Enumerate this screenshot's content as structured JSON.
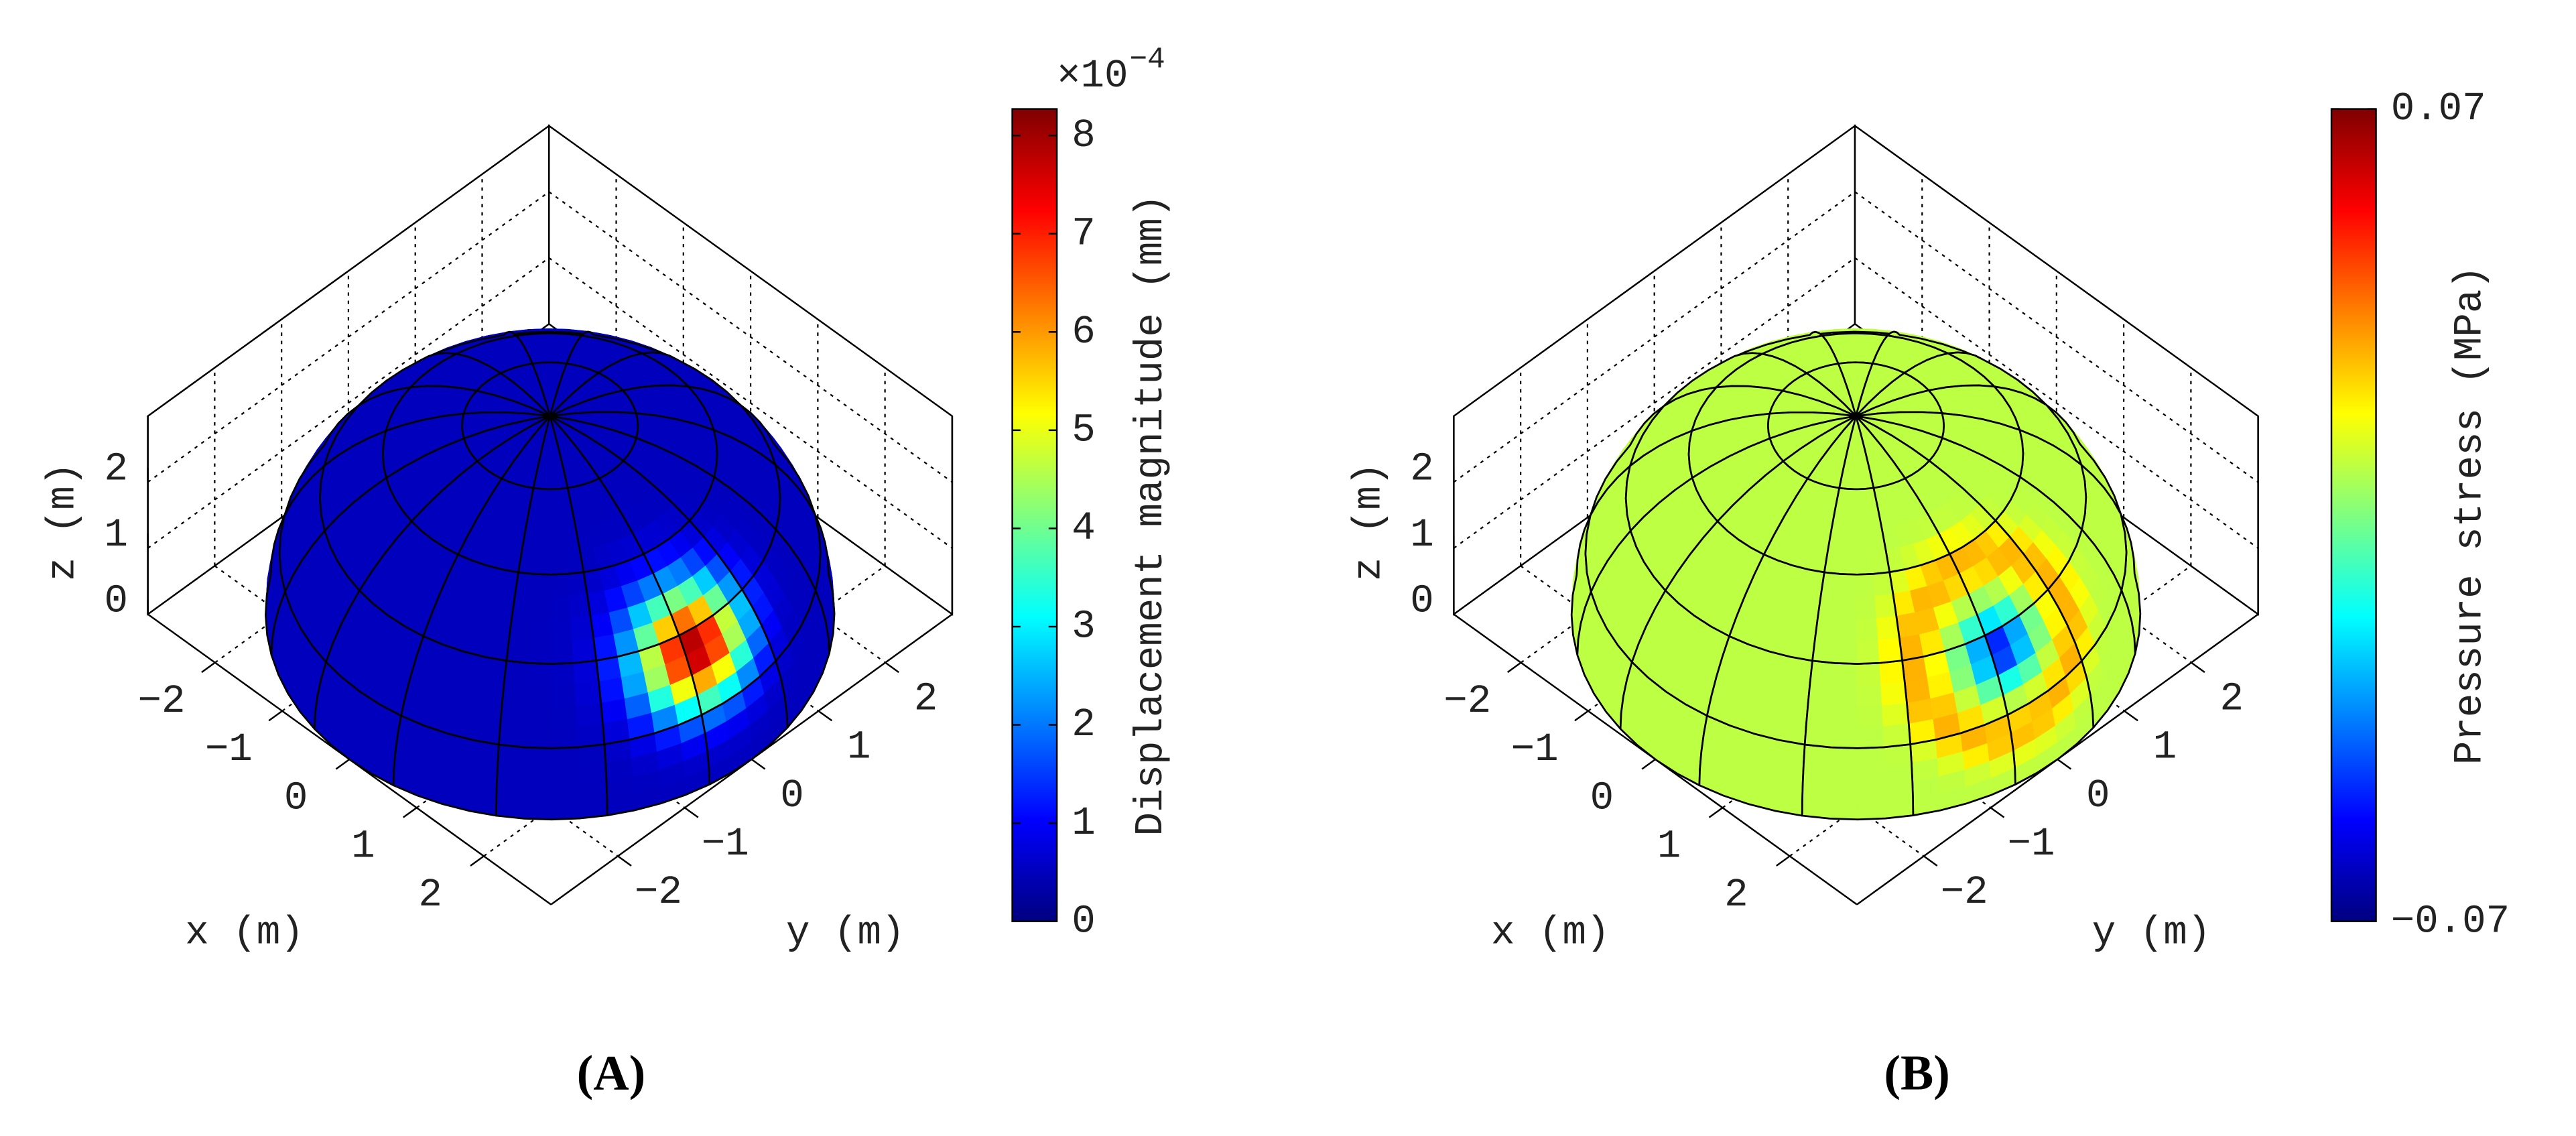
{
  "chart_data": [
    {
      "type": "surface3d",
      "panel_label": "(A)",
      "x_label": "x (m)",
      "y_label": "y (m)",
      "z_label": "z (m)",
      "xlim": [
        -3,
        3
      ],
      "ylim": [
        -3,
        3
      ],
      "zlim": [
        0,
        3
      ],
      "xticks": [
        {
          "value": -2,
          "label": "−2"
        },
        {
          "value": -1,
          "label": "−1"
        },
        0,
        1,
        2
      ],
      "yticks": [
        {
          "value": -2,
          "label": "−2"
        },
        {
          "value": -1,
          "label": "−1"
        },
        0,
        1,
        2
      ],
      "zticks": [
        0,
        1,
        2
      ],
      "grid": true,
      "colormap": "jet",
      "colorbar": {
        "label": "Displacement magnitude (mm)",
        "lim": [
          0,
          8.27
        ],
        "ticks": [
          0,
          1,
          2,
          3,
          4,
          5,
          6,
          7,
          8
        ],
        "multiplier": "×10",
        "exponent": "−4"
      }
    },
    {
      "type": "surface3d",
      "panel_label": "(B)",
      "x_label": "x (m)",
      "y_label": "y (m)",
      "z_label": "z (m)",
      "xlim": [
        -3,
        3
      ],
      "ylim": [
        -3,
        3
      ],
      "zlim": [
        0,
        3
      ],
      "xticks": [
        {
          "value": -2,
          "label": "−2"
        },
        {
          "value": -1,
          "label": "−1"
        },
        0,
        1,
        2
      ],
      "yticks": [
        {
          "value": -2,
          "label": "−2"
        },
        {
          "value": -1,
          "label": "−1"
        },
        0,
        1,
        2
      ],
      "zticks": [
        0,
        1,
        2
      ],
      "grid": true,
      "colormap": "jet",
      "colorbar": {
        "label": "Pressure stress (MPa)",
        "lim": [
          -0.07,
          0.07
        ],
        "ticks": [
          {
            "value": -0.07,
            "label": "−0.07"
          },
          0.07
        ]
      }
    }
  ]
}
